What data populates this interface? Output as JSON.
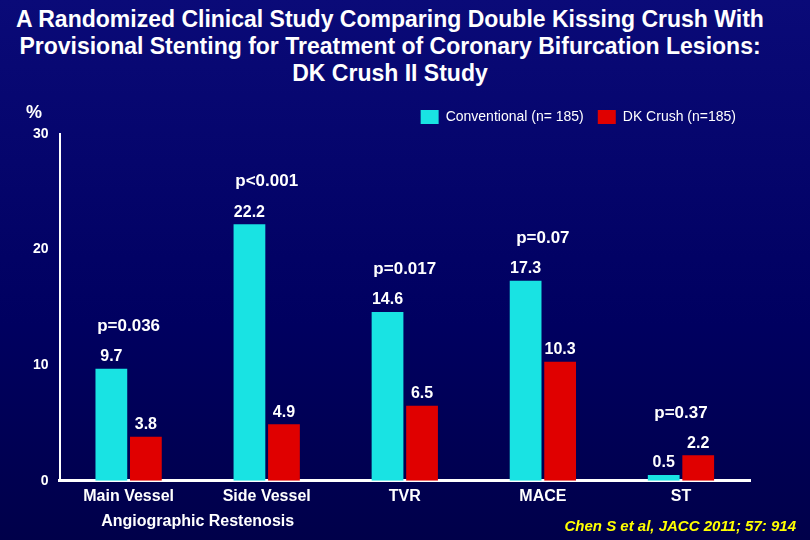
{
  "chart_data": {
    "type": "bar",
    "title": "A Randomized Clinical Study Comparing Double Kissing Crush With Provisional Stenting for Treatment of Coronary Bifurcation Lesions: DK Crush II Study",
    "y_label": "%",
    "categories": [
      "Main Vessel",
      "Side Vessel",
      "TVR",
      "MACE",
      "ST"
    ],
    "series": [
      {
        "name": "Conventional (n= 185)",
        "color": "#19e3e3",
        "values": [
          9.7,
          22.2,
          14.6,
          17.3,
          0.5
        ]
      },
      {
        "name": "DK Crush (n=185)",
        "color": "#e00000",
        "values": [
          3.8,
          4.9,
          6.5,
          10.3,
          2.2
        ]
      }
    ],
    "ylim": [
      0,
      30
    ],
    "yticks": [
      0,
      10,
      20,
      30
    ],
    "grid": false,
    "legend": "top-right",
    "data_labels": true,
    "annotations": [
      {
        "text": "p=0.036",
        "category": "Main Vessel"
      },
      {
        "text": "p<0.001",
        "category": "Side Vessel"
      },
      {
        "text": "p=0.017",
        "category": "TVR"
      },
      {
        "text": "p=0.07",
        "category": "MACE"
      },
      {
        "text": "p=0.37",
        "category": "ST"
      }
    ],
    "group_labels": [
      {
        "text": "Angiographic Restenosis",
        "categories": [
          "Main Vessel",
          "Side Vessel"
        ]
      }
    ],
    "source": "Chen S et al, JACC 2011; 57: 914"
  }
}
